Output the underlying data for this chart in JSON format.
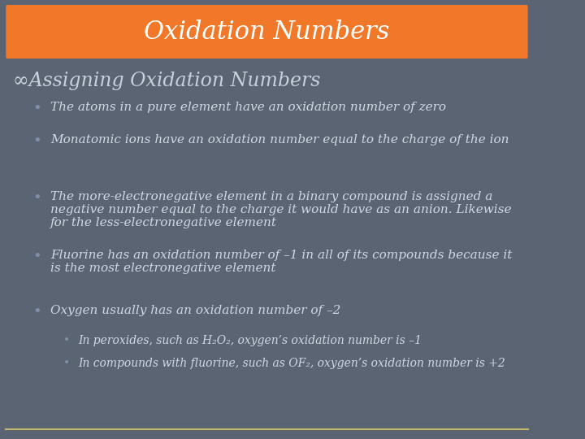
{
  "background_color": "#5a6472",
  "title_box_color": "#f07828",
  "title_text": "Oxidation Numbers",
  "title_text_color": "#ffffff",
  "title_fontsize": 22,
  "heading_text": "∞Assigning Oxidation Numbers",
  "heading_color": "#c8d0dc",
  "heading_fontsize": 17,
  "bullet_color": "#8090a8",
  "text_color": "#d0d8e4",
  "body_fontsize": 11,
  "sub_bullet_fontsize": 10,
  "bottom_line_color": "#c8b870",
  "bullets": [
    "The atoms in a pure element have an oxidation number of zero",
    "Monatomic ions have an oxidation number equal to the charge of the ion",
    "The more-electronegative element in a binary compound is assigned a\nnegative number equal to the charge it would have as an anion. Likewise\nfor the less-electronegative element",
    "Fluorine has an oxidation number of –1 in all of its compounds because it\nis the most electronegative element",
    "Oxygen usually has an oxidation number of –2"
  ],
  "sub_bullets": [
    [
      "In peroxides, such as H₂O₂, oxygen’s oxidation number is –1",
      "In compounds with fluorine, such as OF₂, oxygen’s oxidation number is +2"
    ]
  ]
}
